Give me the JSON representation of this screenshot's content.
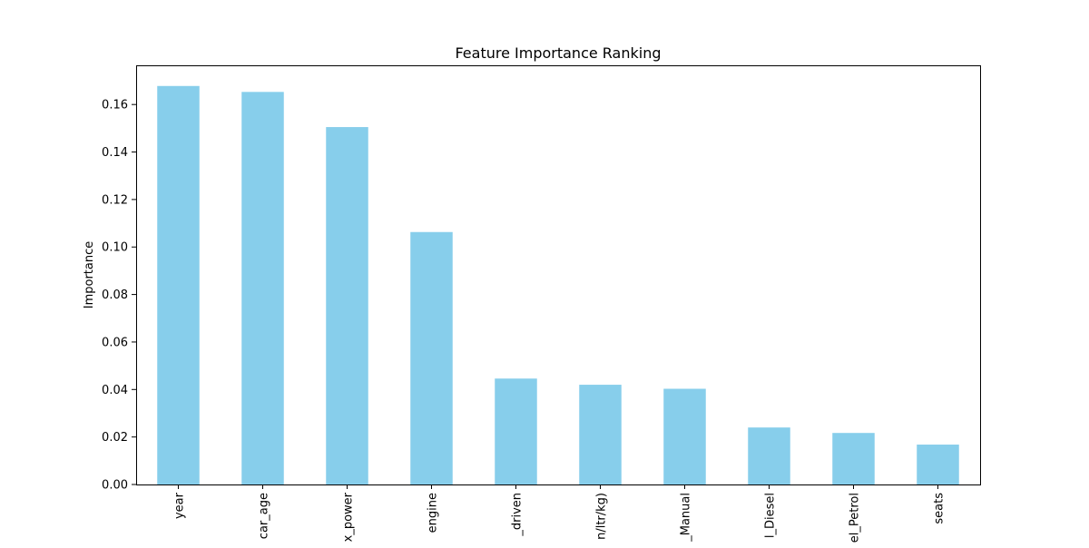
{
  "chart_data": {
    "type": "bar",
    "title": "Feature Importance Ranking",
    "xlabel": "",
    "ylabel": "Importance",
    "categories": [
      "year",
      "car_age",
      "x_power",
      "engine",
      "_driven",
      "n/ltr/kg)",
      "_Manual",
      "l_Diesel",
      "el_Petrol",
      "seats"
    ],
    "values": [
      0.1678,
      0.1653,
      0.1505,
      0.1063,
      0.0446,
      0.042,
      0.0403,
      0.024,
      0.0217,
      0.0168
    ],
    "ylim": [
      0,
      0.1765
    ],
    "yticks": [
      0.0,
      0.02,
      0.04,
      0.06,
      0.08,
      0.1,
      0.12,
      0.14,
      0.16
    ],
    "ytick_labels": [
      "0.00",
      "0.02",
      "0.04",
      "0.06",
      "0.08",
      "0.10",
      "0.12",
      "0.14",
      "0.16"
    ],
    "bar_color": "#87ceeb",
    "grid": false,
    "legend": "none"
  }
}
